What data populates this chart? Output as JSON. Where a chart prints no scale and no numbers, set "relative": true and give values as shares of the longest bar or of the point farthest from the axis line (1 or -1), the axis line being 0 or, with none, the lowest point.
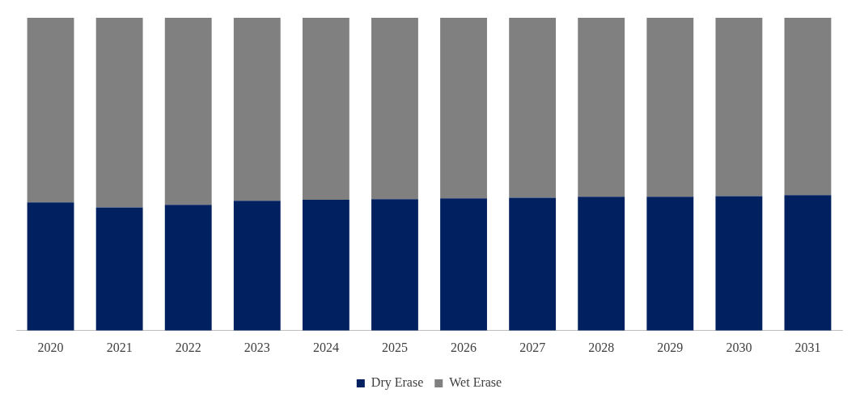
{
  "chart_data": {
    "type": "bar",
    "relative": true,
    "stacked": true,
    "legend": "bottom",
    "grid": false,
    "categories": [
      "2020",
      "2021",
      "2022",
      "2023",
      "2024",
      "2025",
      "2026",
      "2027",
      "2028",
      "2029",
      "2030",
      "2031"
    ],
    "series": [
      {
        "name": "Dry Erase",
        "color": "#002060",
        "values": [
          0.41,
          0.394,
          0.402,
          0.415,
          0.418,
          0.42,
          0.423,
          0.425,
          0.428,
          0.428,
          0.43,
          0.433
        ]
      },
      {
        "name": "Wet Erase",
        "color": "#808080",
        "values": [
          0.59,
          0.606,
          0.598,
          0.585,
          0.582,
          0.58,
          0.577,
          0.575,
          0.572,
          0.572,
          0.57,
          0.567
        ]
      }
    ]
  }
}
